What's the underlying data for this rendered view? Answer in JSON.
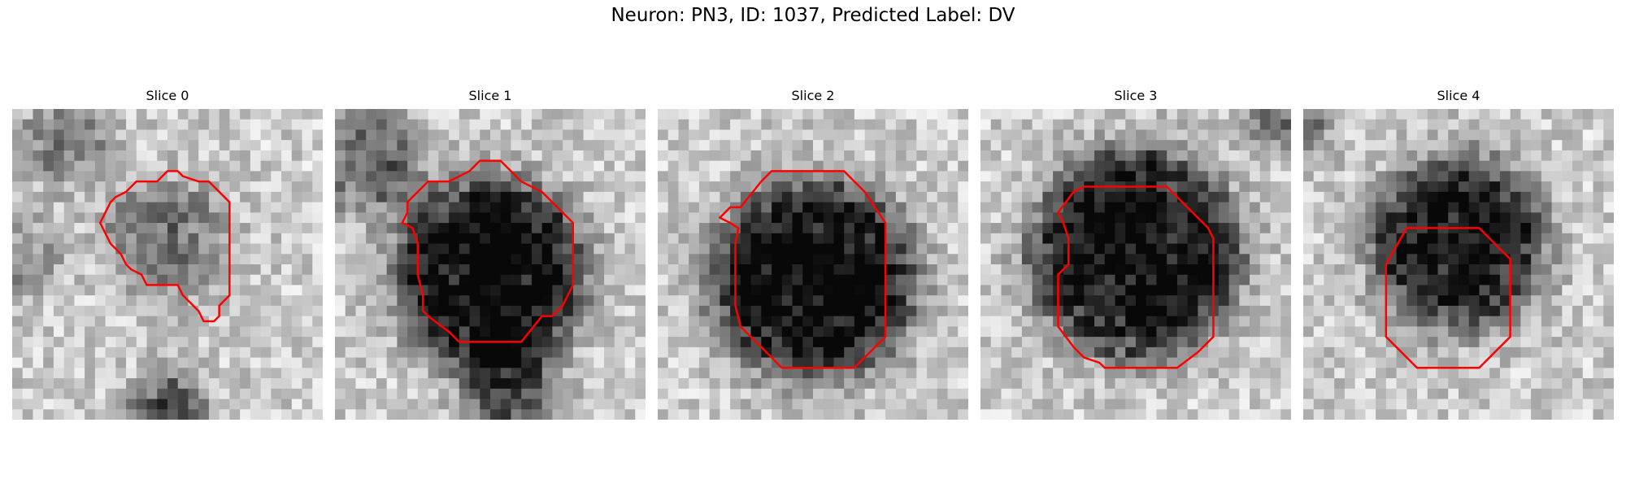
{
  "figure": {
    "title": "Neuron: PN3, ID: 1037, Predicted Label: DV",
    "contour_color": "#ff0000",
    "colormap": "gray",
    "panels": [
      {
        "title": "Slice 0"
      },
      {
        "title": "Slice 1"
      },
      {
        "title": "Slice 2"
      },
      {
        "title": "Slice 3"
      },
      {
        "title": "Slice 4"
      }
    ]
  }
}
